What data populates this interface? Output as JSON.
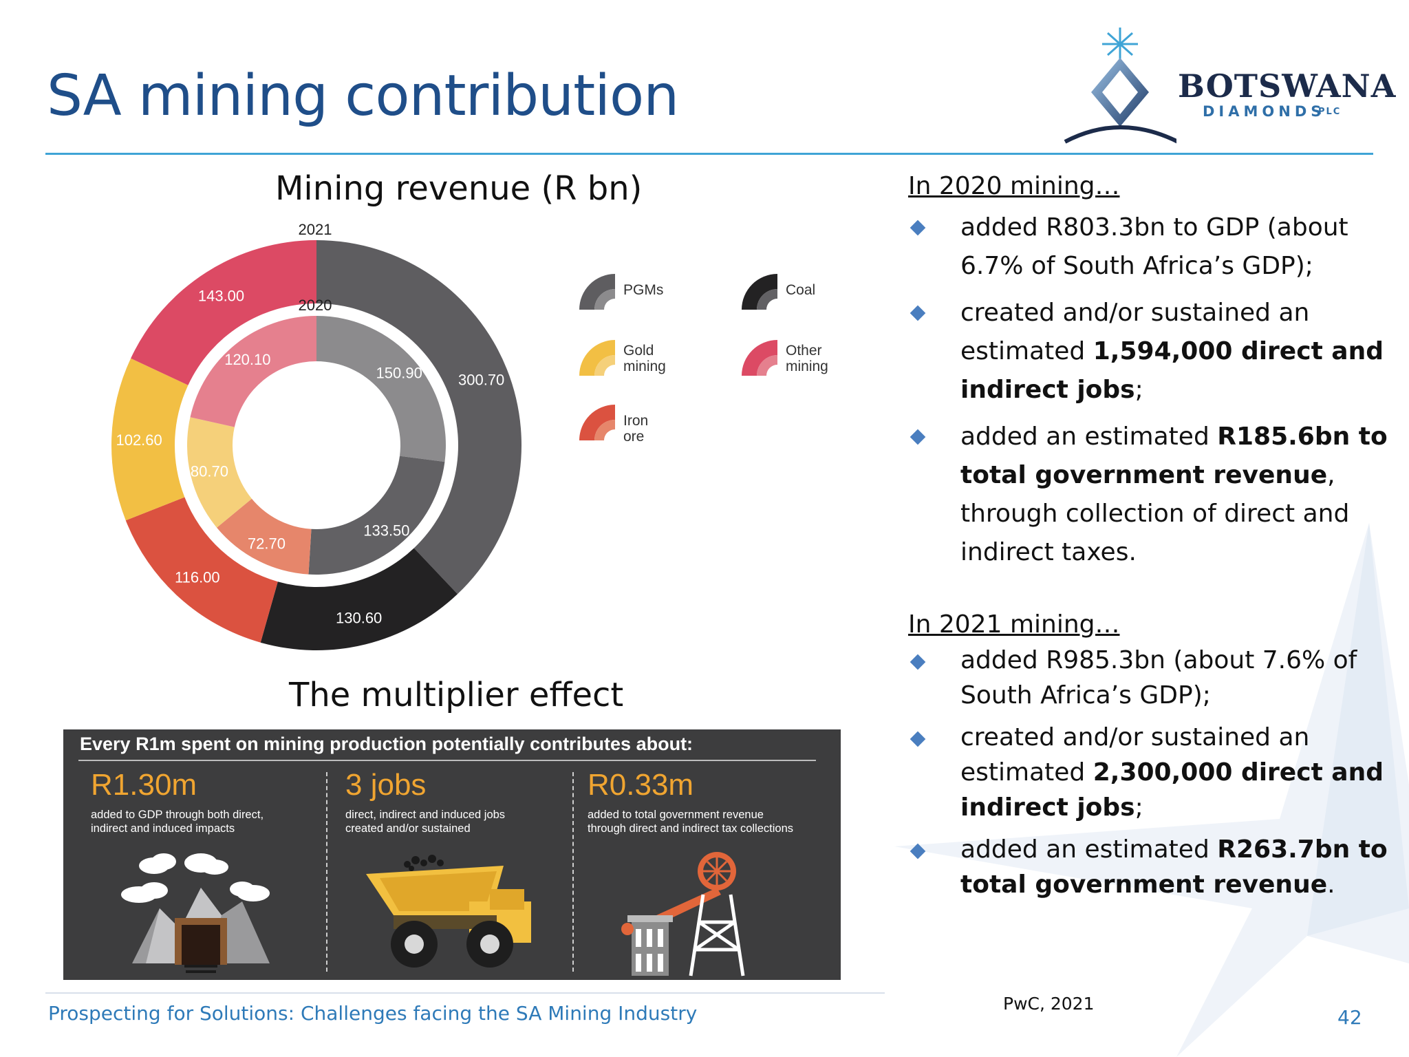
{
  "slide": {
    "title": "SA mining contribution",
    "footer": "Prospecting for Solutions: Challenges facing the SA Mining Industry",
    "source": "PwC, 2021",
    "page_number": "42"
  },
  "logo": {
    "name": "BOTSWANA",
    "sub": "DIAMONDS",
    "plc": "PLC"
  },
  "colors": {
    "title_blue": "#1f4e89",
    "rule_blue": "#3fa4d6",
    "bullet_blue": "#4a7ebf",
    "panel_dark": "#3d3d3e",
    "accent_orange": "#f0a531"
  },
  "chart_data": {
    "type": "donut",
    "title": "Mining revenue (R bn)",
    "rings": [
      {
        "name": "2021",
        "label": "2021",
        "values": [
          {
            "category": "PGMs",
            "value": 300.7,
            "label": "300.70",
            "color": "#5e5d60"
          },
          {
            "category": "Coal",
            "value": 130.6,
            "label": "130.60",
            "color": "#232223"
          },
          {
            "category": "Iron ore",
            "value": 116.0,
            "label": "116.00",
            "color": "#db5240"
          },
          {
            "category": "Gold mining",
            "value": 102.6,
            "label": "102.60",
            "color": "#f2bf44"
          },
          {
            "category": "Other mining",
            "value": 143.0,
            "label": "143.00",
            "color": "#dc4a64"
          }
        ]
      },
      {
        "name": "2020",
        "label": "2020",
        "values": [
          {
            "category": "PGMs",
            "value": 150.9,
            "label": "150.90",
            "color": "#8c8b8d"
          },
          {
            "category": "Coal",
            "value": 133.5,
            "label": "133.50",
            "color": "#626164"
          },
          {
            "category": "Iron ore",
            "value": 72.7,
            "label": "72.70",
            "color": "#e6866b"
          },
          {
            "category": "Gold mining",
            "value": 80.7,
            "label": "80.70",
            "color": "#f5d07a"
          },
          {
            "category": "Other mining",
            "value": 120.1,
            "label": "120.10",
            "color": "#e5808e"
          }
        ]
      }
    ],
    "legend": [
      {
        "label": "PGMs",
        "colors": [
          "#5e5d60",
          "#8c8b8d"
        ]
      },
      {
        "label": "Coal",
        "colors": [
          "#232223",
          "#626164"
        ]
      },
      {
        "label": "Gold\nmining",
        "colors": [
          "#f2bf44",
          "#f5d07a"
        ]
      },
      {
        "label": "Other\nmining",
        "colors": [
          "#dc4a64",
          "#e5808e"
        ]
      },
      {
        "label": "Iron ore",
        "colors": [
          "#db5240",
          "#e6866b"
        ]
      }
    ],
    "legend_position": "right"
  },
  "multiplier": {
    "title": "The multiplier effect",
    "headline": "Every R1m spent on mining production potentially contributes about:",
    "items": [
      {
        "value": "R1.30m",
        "text": "added to GDP through both direct,\nindirect and induced impacts"
      },
      {
        "value": "3 jobs",
        "text": "direct, indirect and induced jobs\ncreated and/or sustained"
      },
      {
        "value": "R0.33m",
        "text": "added to total government revenue\nthrough direct and indirect tax collections"
      }
    ]
  },
  "facts_2020": {
    "heading": "In 2020 mining…",
    "b1": "added R803.3bn to GDP (about 6.7% of South Africa’s GDP);",
    "b2_pre": "created and/or sustained an estimated ",
    "b2_bold": "1,594,000 direct and indirect jobs",
    "b2_post": ";",
    "b3_pre": "added an estimated ",
    "b3_bold": "R185.6bn to total government revenue",
    "b3_post": ", through collection of direct and indirect taxes."
  },
  "facts_2021": {
    "heading": "In 2021 mining…",
    "b1": "added R985.3bn (about 7.6% of South Africa’s GDP);",
    "b2_pre": "created and/or sustained an estimated ",
    "b2_bold": "2,300,000 direct and indirect jobs",
    "b2_post": ";",
    "b3_pre": "added an estimated ",
    "b3_bold": "R263.7bn to total government revenue",
    "b3_post": "."
  }
}
